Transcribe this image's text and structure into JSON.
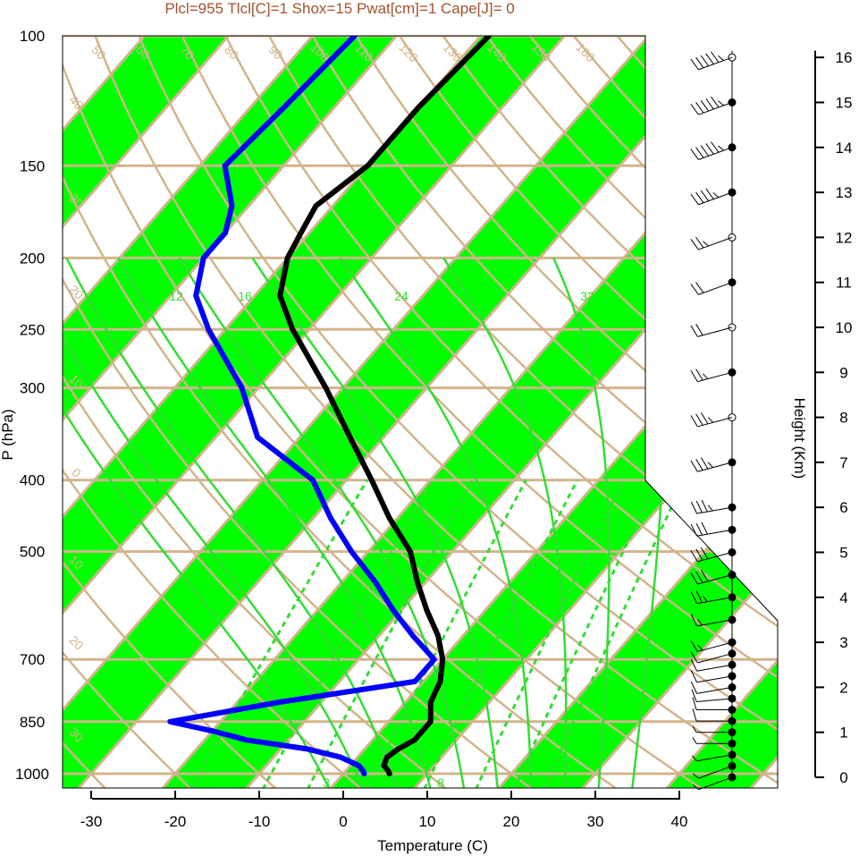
{
  "header": {
    "title": "Plcl=955 Tlcl[C]=1 Shox=15 Pwat[cm]=1 Cape[J]= 0"
  },
  "colors": {
    "background": "#ffffff",
    "green_band": "#00ff00",
    "tan_lines": "#d2b48c",
    "mixing_ratio": "#33dd33",
    "temperature": "#000000",
    "dewpoint": "#0000ff",
    "title": "#a0522d"
  },
  "axes": {
    "ylabel": "P (hPa)",
    "xlabel": "Temperature (C)",
    "height_label": "Height (Km)",
    "pressure_ticks": [
      "100",
      "150",
      "200",
      "250",
      "300",
      "400",
      "500",
      "700",
      "850",
      "1000"
    ],
    "pressure_values": [
      100,
      150,
      200,
      250,
      300,
      400,
      500,
      700,
      850,
      1000
    ],
    "temp_ticks": [
      "-30",
      "-20",
      "-10",
      "0",
      "10",
      "20",
      "30",
      "40"
    ],
    "temp_values": [
      -30,
      -20,
      -10,
      0,
      10,
      20,
      30,
      40
    ],
    "height_ticks": [
      "0",
      "1",
      "2",
      "3",
      "4",
      "5",
      "6",
      "7",
      "8",
      "9",
      "10",
      "11",
      "12",
      "13",
      "14",
      "15",
      "16"
    ],
    "height_values": [
      0,
      1,
      2,
      3,
      4,
      5,
      6,
      7,
      8,
      9,
      10,
      11,
      12,
      13,
      14,
      15,
      16
    ],
    "xlim": [
      -33,
      35
    ],
    "ylim": [
      1050,
      100
    ]
  },
  "overlay_labels": {
    "dry_adiabat_top": [
      "50",
      "60",
      "70",
      "80",
      "90",
      "100",
      "110",
      "120",
      "130",
      "140",
      "150",
      "160"
    ],
    "isotherm_right": [
      "30",
      "20",
      "10",
      "0",
      "10",
      "20",
      "30"
    ],
    "isotherm_left": [
      "40",
      "30",
      "20",
      "10",
      "0",
      "10",
      "20",
      "30"
    ],
    "mixing_ratio_upper": [
      "12",
      "16",
      "24",
      "32"
    ],
    "mixing_ratio_lower": [
      "3",
      "8"
    ]
  },
  "chart_data": {
    "type": "skew-t",
    "series": [
      {
        "name": "temperature",
        "pressure": [
          1000,
          990,
          975,
          950,
          925,
          900,
          875,
          850,
          800,
          750,
          700,
          650,
          600,
          550,
          500,
          450,
          400,
          350,
          300,
          250,
          225,
          200,
          185,
          170,
          150,
          125,
          100
        ],
        "values": [
          5.5,
          5.0,
          4.0,
          3.5,
          4.0,
          5.0,
          5.0,
          5.0,
          3.0,
          2.0,
          0.0,
          -3.0,
          -7.0,
          -11.0,
          -15.0,
          -21.0,
          -27.0,
          -34.0,
          -42.0,
          -52.0,
          -57.0,
          -60.0,
          -61.0,
          -62.0,
          -60.0,
          -60.0,
          -59.0
        ]
      },
      {
        "name": "dewpoint",
        "pressure": [
          1000,
          990,
          975,
          950,
          925,
          900,
          875,
          850,
          800,
          750,
          700,
          650,
          600,
          550,
          500,
          450,
          400,
          350,
          300,
          250,
          225,
          200,
          185,
          170,
          150,
          125,
          100
        ],
        "values": [
          2.5,
          2.0,
          1.0,
          -2.0,
          -7.0,
          -15.0,
          -20.0,
          -26.0,
          -15.0,
          -1.0,
          -1.0,
          -6.0,
          -11.0,
          -16.0,
          -22.0,
          -28.0,
          -34.0,
          -45.0,
          -52.0,
          -62.0,
          -67.0,
          -70.0,
          -70.0,
          -72.0,
          -77.0,
          -76.0,
          -75.0
        ]
      }
    ],
    "wind_heights_km": [
      0,
      0.25,
      0.5,
      0.75,
      1.0,
      1.25,
      1.5,
      1.75,
      2.0,
      2.25,
      2.5,
      2.75,
      3.0,
      3.5,
      4.0,
      4.5,
      5.0,
      5.5,
      6.0,
      7.0,
      8.0,
      9.0,
      10.0,
      11.0,
      12.0,
      13.0,
      14.0,
      15.0,
      16.0
    ],
    "wind_speeds_kt": [
      5,
      5,
      5,
      5,
      5,
      10,
      10,
      10,
      10,
      10,
      10,
      10,
      15,
      15,
      25,
      30,
      30,
      30,
      35,
      35,
      35,
      25,
      20,
      20,
      25,
      45,
      55,
      55,
      55
    ],
    "wind_directions_deg": [
      250,
      250,
      260,
      270,
      270,
      270,
      270,
      265,
      260,
      260,
      260,
      255,
      255,
      260,
      260,
      255,
      255,
      260,
      260,
      255,
      255,
      255,
      255,
      250,
      250,
      250,
      250,
      250,
      250
    ]
  }
}
